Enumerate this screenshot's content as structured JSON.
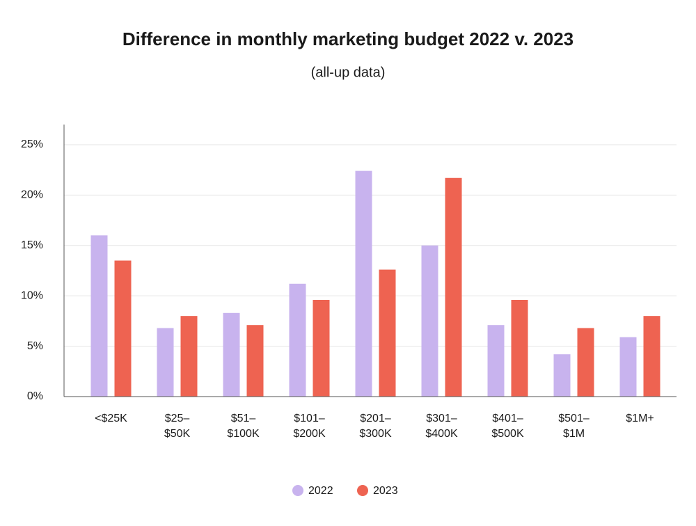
{
  "chart_data": {
    "type": "bar",
    "title": "Difference in monthly marketing budget 2022 v. 2023",
    "subtitle": "(all-up data)",
    "categories": [
      "<$25K",
      "$25–$50K",
      "$51–$100K",
      "$101–$200K",
      "$201–$300K",
      "$301–$400K",
      "$401–$500K",
      "$501–$1M",
      "$1M+"
    ],
    "series": [
      {
        "name": "2022",
        "color": "#c8b3ee",
        "values": [
          16.0,
          6.8,
          8.3,
          11.2,
          22.4,
          15.0,
          7.1,
          4.2,
          5.9
        ]
      },
      {
        "name": "2023",
        "color": "#ee6351",
        "values": [
          13.5,
          8.0,
          7.1,
          9.6,
          12.6,
          21.7,
          9.6,
          6.8,
          8.0
        ]
      }
    ],
    "ylim": [
      0,
      27
    ],
    "yticks": [
      {
        "value": 0,
        "label": "0%"
      },
      {
        "value": 5,
        "label": "5%"
      },
      {
        "value": 10,
        "label": "10%"
      },
      {
        "value": 15,
        "label": "15%"
      },
      {
        "value": 20,
        "label": "20%"
      },
      {
        "value": 25,
        "label": "25%"
      }
    ],
    "grid": true,
    "legend": "bottom"
  }
}
